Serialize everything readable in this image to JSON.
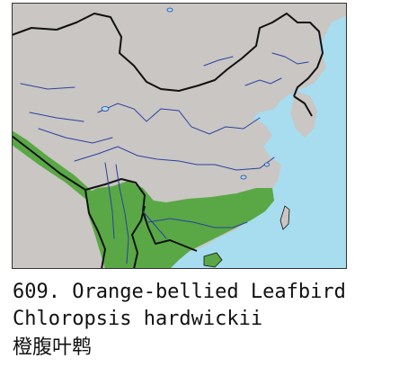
{
  "caption": {
    "number_and_common_name": "609. Orange-bellied Leafbird",
    "scientific_name": "Chloropsis hardwickii",
    "chinese_name": "橙腹叶鹎"
  },
  "colors": {
    "land": "#c9c6c3",
    "sea": "#a8dcef",
    "range": "#59a845",
    "river": "#2c40a0",
    "border": "#111111",
    "frame": "#333333"
  }
}
